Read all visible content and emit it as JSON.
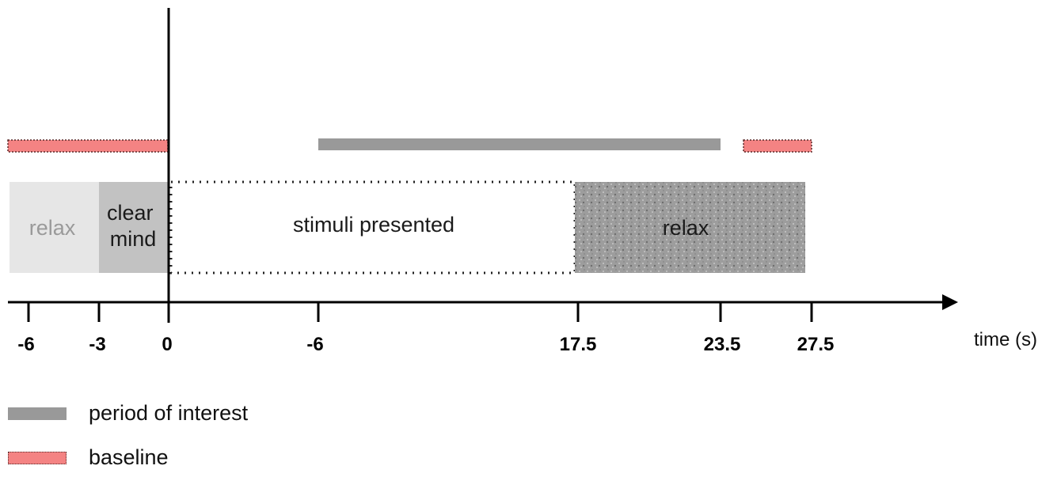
{
  "diagram": {
    "axis": {
      "label": "time (s)",
      "ticks": [
        "-6",
        "-3",
        "0",
        "-6",
        "17.5",
        "23.5",
        "27.5"
      ]
    },
    "phases": [
      {
        "id": "relax-pre",
        "label": "relax",
        "fill": "#e6e6e6",
        "text_color": "#9a9a9a"
      },
      {
        "id": "clear-mind",
        "label": "clear\nmind",
        "fill": "#c2c2c2",
        "text_color": "#1a1a1a"
      },
      {
        "id": "stimuli",
        "label": "stimuli presented",
        "fill": "#ffffff",
        "text_color": "#1a1a1a"
      },
      {
        "id": "relax-post",
        "label": "relax",
        "fill": "#9d9d9d",
        "text_color": "#1a1a1a"
      }
    ],
    "colors": {
      "period_of_interest": "#999999",
      "baseline": "#f48383",
      "axis": "#000000"
    }
  },
  "legend": {
    "items": [
      {
        "label": "period of interest",
        "swatch": "period_of_interest"
      },
      {
        "label": "baseline",
        "swatch": "baseline"
      }
    ]
  }
}
